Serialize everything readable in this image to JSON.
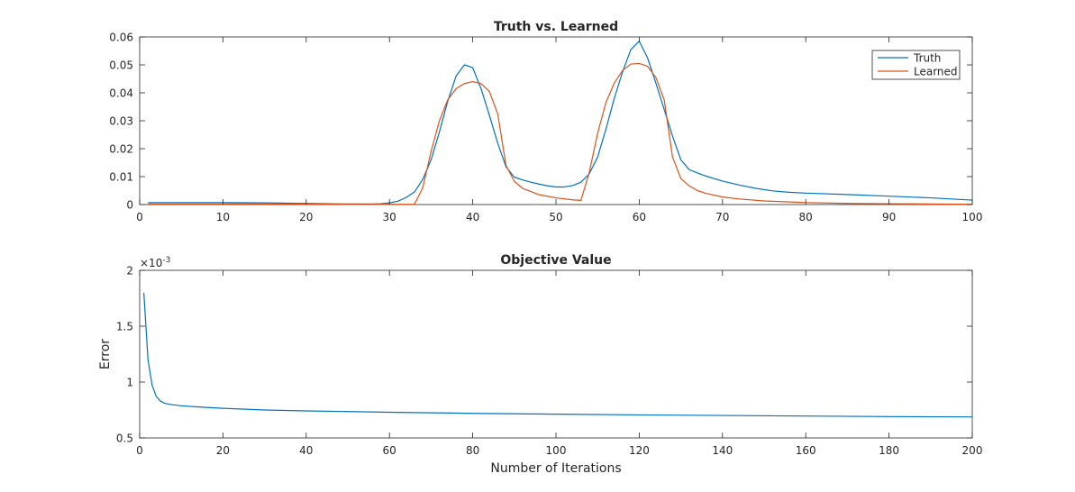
{
  "chart_data": [
    {
      "type": "line",
      "title": "Truth vs. Learned",
      "xlabel": "",
      "ylabel": "",
      "xlim": [
        0,
        100
      ],
      "ylim": [
        0,
        0.06
      ],
      "xticks": [
        0,
        10,
        20,
        30,
        40,
        50,
        60,
        70,
        80,
        90,
        100
      ],
      "yticks": [
        0,
        0.01,
        0.02,
        0.03,
        0.04,
        0.05,
        0.06
      ],
      "xtick_labels": [
        "0",
        "10",
        "20",
        "30",
        "40",
        "50",
        "60",
        "70",
        "80",
        "90",
        "100"
      ],
      "ytick_labels": [
        "0",
        "0.01",
        "0.02",
        "0.03",
        "0.04",
        "0.05",
        "0.06"
      ],
      "grid": false,
      "legend": "top-right",
      "series": [
        {
          "name": "Truth",
          "color": "#0072BD",
          "x": [
            1,
            5,
            10,
            15,
            20,
            25,
            28,
            29,
            30,
            31,
            32,
            33,
            34,
            35,
            36,
            37,
            38,
            39,
            40,
            41,
            42,
            43,
            44,
            45,
            46,
            47,
            48,
            49,
            50,
            51,
            52,
            53,
            54,
            55,
            56,
            57,
            58,
            59,
            60,
            61,
            62,
            63,
            64,
            65,
            66,
            67,
            68,
            69,
            70,
            72,
            74,
            76,
            78,
            80,
            85,
            90,
            95,
            100
          ],
          "y": [
            0.0007,
            0.0007,
            0.0007,
            0.0006,
            0.0004,
            0.0002,
            0.0002,
            0.0003,
            0.0006,
            0.0012,
            0.0025,
            0.0045,
            0.009,
            0.016,
            0.026,
            0.037,
            0.046,
            0.05,
            0.049,
            0.0415,
            0.032,
            0.022,
            0.0135,
            0.0098,
            0.0088,
            0.008,
            0.0073,
            0.0067,
            0.0063,
            0.0063,
            0.0068,
            0.008,
            0.011,
            0.017,
            0.027,
            0.038,
            0.0475,
            0.0555,
            0.0585,
            0.0525,
            0.0435,
            0.034,
            0.0245,
            0.016,
            0.0125,
            0.0113,
            0.0102,
            0.0093,
            0.0084,
            0.007,
            0.0058,
            0.0049,
            0.0044,
            0.0041,
            0.0036,
            0.003,
            0.0024,
            0.0016
          ]
        },
        {
          "name": "Learned",
          "color": "#D95319",
          "x": [
            1,
            5,
            10,
            15,
            20,
            25,
            30,
            33,
            34,
            35,
            36,
            37,
            38,
            39,
            40,
            41,
            42,
            43,
            44,
            45,
            46,
            48,
            50,
            52,
            53,
            54,
            55,
            56,
            57,
            58,
            59,
            60,
            61,
            62,
            63,
            64,
            65,
            66,
            67,
            68,
            70,
            72,
            75,
            80,
            85,
            90,
            95,
            100
          ],
          "y": [
            0.0002,
            0.0002,
            0.0002,
            0.0002,
            0.0002,
            0.0001,
            0.0001,
            0.0001,
            0.006,
            0.019,
            0.03,
            0.0375,
            0.0415,
            0.0433,
            0.044,
            0.0433,
            0.0405,
            0.0325,
            0.014,
            0.0083,
            0.0058,
            0.0035,
            0.0024,
            0.0017,
            0.0015,
            0.0115,
            0.0255,
            0.0365,
            0.0435,
            0.048,
            0.0503,
            0.0505,
            0.0495,
            0.0455,
            0.0375,
            0.017,
            0.0093,
            0.0067,
            0.005,
            0.004,
            0.0027,
            0.002,
            0.0013,
            0.0007,
            0.0004,
            0.0003,
            0.0002,
            0.0001
          ]
        }
      ]
    },
    {
      "type": "line",
      "title": "Objective Value",
      "xlabel": "Number of Iterations",
      "ylabel": "Error",
      "xlim": [
        0,
        200
      ],
      "ylim": [
        0.0005,
        0.002
      ],
      "scale_exponent_label": "×10",
      "scale_exponent": "-3",
      "xticks": [
        0,
        20,
        40,
        60,
        80,
        100,
        120,
        140,
        160,
        180,
        200
      ],
      "yticks": [
        0.0005,
        0.001,
        0.0015,
        0.002
      ],
      "xtick_labels": [
        "0",
        "20",
        "40",
        "60",
        "80",
        "100",
        "120",
        "140",
        "160",
        "180",
        "200"
      ],
      "ytick_labels": [
        "0.5",
        "1",
        "1.5",
        "2"
      ],
      "grid": false,
      "legend": "none",
      "series": [
        {
          "color": "#0072BD",
          "x": [
            1,
            2,
            3,
            4,
            5,
            6,
            7,
            8,
            10,
            15,
            20,
            30,
            40,
            60,
            80,
            100,
            120,
            140,
            160,
            180,
            200
          ],
          "y": [
            0.0018,
            0.0012,
            0.00097,
            0.00087,
            0.00083,
            0.00081,
            0.000803,
            0.000797,
            0.000788,
            0.000775,
            0.000765,
            0.00075,
            0.000742,
            0.00073,
            0.00072,
            0.000713,
            0.000706,
            0.000701,
            0.000696,
            0.000691,
            0.000688
          ]
        }
      ]
    }
  ]
}
